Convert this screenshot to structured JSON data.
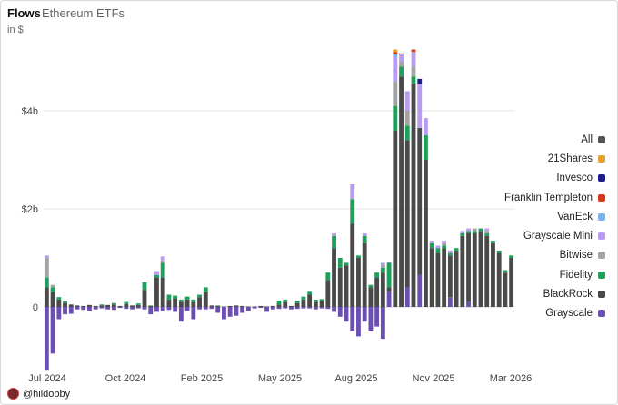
{
  "header": {
    "title": "Flows",
    "subtitle": "Ethereum ETFs",
    "units": "in $"
  },
  "credit": {
    "handle": "@hildobby"
  },
  "chart_data": {
    "type": "bar",
    "stacked": true,
    "title": "Flows",
    "subtitle": "Ethereum ETFs",
    "ylabel": "in $",
    "y_unit": "billions USD",
    "ylim": [
      -1.3,
      5.3
    ],
    "y_ticks": [
      {
        "value": 0,
        "label": "0"
      },
      {
        "value": 2,
        "label": "$2b"
      },
      {
        "value": 4,
        "label": "$4b"
      }
    ],
    "x_ticks": [
      "Jul 2024",
      "Oct 2024",
      "Feb 2025",
      "May 2025",
      "Aug 2025",
      "Nov 2025",
      "Mar 2026"
    ],
    "legend_position": "right",
    "grid": true,
    "legend": [
      {
        "name": "All",
        "color": "#555555"
      },
      {
        "name": "21Shares",
        "color": "#e3a12b"
      },
      {
        "name": "Invesco",
        "color": "#1c1c8c"
      },
      {
        "name": "Franklin Templeton",
        "color": "#d83a1e"
      },
      {
        "name": "VanEck",
        "color": "#79b1ea"
      },
      {
        "name": "Grayscale Mini",
        "color": "#b79cf1"
      },
      {
        "name": "Bitwise",
        "color": "#a3a3a3"
      },
      {
        "name": "Fidelity",
        "color": "#1fa05a"
      },
      {
        "name": "BlackRock",
        "color": "#4a4a4a"
      },
      {
        "name": "Grayscale",
        "color": "#6b4fb2"
      }
    ],
    "series_order": [
      "Grayscale",
      "BlackRock",
      "Fidelity",
      "Bitwise",
      "Grayscale Mini",
      "VanEck",
      "Franklin Templeton",
      "Invesco",
      "21Shares"
    ],
    "periods": [
      {
        "BlackRock": 0.4,
        "Fidelity": 0.2,
        "Bitwise": 0.4,
        "Grayscale Mini": 0.05,
        "Grayscale": -1.3
      },
      {
        "BlackRock": 0.3,
        "Fidelity": 0.1,
        "Bitwise": 0.05,
        "Grayscale": -0.95
      },
      {
        "BlackRock": 0.15,
        "Fidelity": 0.05,
        "Grayscale": -0.25
      },
      {
        "BlackRock": 0.08,
        "Fidelity": 0.04,
        "Grayscale": -0.15
      },
      {
        "BlackRock": 0.05,
        "Grayscale": -0.14
      },
      {
        "BlackRock": 0.03,
        "Grayscale": -0.05
      },
      {
        "BlackRock": 0.02,
        "Grayscale": -0.06
      },
      {
        "BlackRock": 0.04,
        "Grayscale": -0.08
      },
      {
        "BlackRock": 0.02,
        "Grayscale": -0.05
      },
      {
        "BlackRock": 0.03,
        "Fidelity": 0.02,
        "Grayscale": -0.03
      },
      {
        "BlackRock": 0.04,
        "Grayscale": -0.05
      },
      {
        "BlackRock": 0.05,
        "Fidelity": 0.03,
        "Grayscale": -0.06
      },
      {
        "BlackRock": 0.02,
        "Grayscale": -0.02
      },
      {
        "BlackRock": 0.06,
        "Fidelity": 0.04,
        "Grayscale": -0.04
      },
      {
        "BlackRock": 0.03,
        "Grayscale": -0.05
      },
      {
        "BlackRock": 0.04,
        "Fidelity": 0.03,
        "Grayscale": -0.03
      },
      {
        "BlackRock": 0.35,
        "Fidelity": 0.15,
        "Grayscale": -0.05
      },
      {
        "BlackRock": 0.02,
        "Fidelity": 0.01,
        "Grayscale": -0.15
      },
      {
        "BlackRock": 0.6,
        "Fidelity": 0.05,
        "Grayscale Mini": 0.08,
        "Grayscale": -0.1
      },
      {
        "BlackRock": 0.6,
        "Fidelity": 0.3,
        "Bitwise": 0.05,
        "Grayscale Mini": 0.08,
        "Grayscale": -0.08
      },
      {
        "BlackRock": 0.15,
        "Fidelity": 0.1,
        "Grayscale": -0.06
      },
      {
        "BlackRock": 0.18,
        "Fidelity": 0.05,
        "Grayscale": -0.1
      },
      {
        "BlackRock": 0.1,
        "Fidelity": 0.05,
        "Grayscale": -0.3
      },
      {
        "BlackRock": 0.15,
        "Fidelity": 0.06,
        "Grayscale": -0.08
      },
      {
        "BlackRock": 0.1,
        "Fidelity": 0.05,
        "Grayscale": -0.25
      },
      {
        "BlackRock": 0.2,
        "Fidelity": 0.05,
        "Grayscale": -0.05
      },
      {
        "BlackRock": 0.3,
        "Fidelity": 0.1,
        "Grayscale": -0.05
      },
      {
        "BlackRock": 0.03,
        "Grayscale": -0.04
      },
      {
        "BlackRock": 0.02,
        "Fidelity": 0.01,
        "Grayscale": -0.12
      },
      {
        "BlackRock": 0.01,
        "Grayscale": -0.25
      },
      {
        "BlackRock": 0.02,
        "Grayscale": -0.2
      },
      {
        "BlackRock": 0.03,
        "Grayscale": -0.18
      },
      {
        "BlackRock": 0.02,
        "Grayscale": -0.12
      },
      {
        "BlackRock": 0.01,
        "Grayscale": -0.08
      },
      {
        "BlackRock": 0.01,
        "Grayscale": -0.03
      },
      {
        "BlackRock": 0.02,
        "Grayscale": -0.02
      },
      {
        "BlackRock": 0.01,
        "Grayscale": -0.1
      },
      {
        "BlackRock": 0.02,
        "Grayscale": -0.05
      },
      {
        "BlackRock": 0.05,
        "Fidelity": 0.08,
        "Grayscale": -0.04
      },
      {
        "BlackRock": 0.1,
        "Fidelity": 0.05,
        "Grayscale": -0.03
      },
      {
        "BlackRock": 0.02,
        "Grayscale": -0.05
      },
      {
        "BlackRock": 0.08,
        "Fidelity": 0.05,
        "Grayscale": -0.04
      },
      {
        "BlackRock": 0.15,
        "Fidelity": 0.06,
        "Grayscale": -0.03
      },
      {
        "BlackRock": 0.25,
        "Fidelity": 0.06,
        "Grayscale": -0.03
      },
      {
        "BlackRock": 0.1,
        "Fidelity": 0.05,
        "Grayscale": -0.05
      },
      {
        "BlackRock": 0.12,
        "Fidelity": 0.04,
        "Grayscale": -0.03
      },
      {
        "BlackRock": 0.55,
        "Fidelity": 0.15,
        "Grayscale": -0.04
      },
      {
        "BlackRock": 1.2,
        "Fidelity": 0.25,
        "Grayscale Mini": 0.05,
        "Grayscale": -0.1
      },
      {
        "BlackRock": 0.8,
        "Fidelity": 0.2,
        "Grayscale": -0.2
      },
      {
        "BlackRock": 0.85,
        "Fidelity": 0.05,
        "Grayscale": -0.3
      },
      {
        "BlackRock": 1.7,
        "Fidelity": 0.5,
        "Grayscale Mini": 0.3,
        "Grayscale": -0.5
      },
      {
        "BlackRock": 1.0,
        "Fidelity": 0.05,
        "Grayscale": -0.6
      },
      {
        "BlackRock": 1.3,
        "Fidelity": 0.15,
        "Grayscale Mini": 0.05,
        "Grayscale": -0.3
      },
      {
        "BlackRock": 0.4,
        "Fidelity": 0.05,
        "Grayscale": -0.5
      },
      {
        "BlackRock": 0.6,
        "Fidelity": 0.1,
        "Grayscale": -0.4
      },
      {
        "BlackRock": 0.7,
        "Fidelity": 0.1,
        "Bitwise": 0.05,
        "Grayscale Mini": 0.05,
        "Grayscale": -0.65
      },
      {
        "Grayscale": 0.3,
        "BlackRock": 0.1,
        "Fidelity": 0.5,
        "Grayscale Mini": 0.02
      },
      {
        "BlackRock": 3.6,
        "Fidelity": 0.5,
        "Bitwise": 0.5,
        "Grayscale Mini": 0.5,
        "VanEck": 0.05,
        "Franklin Templeton": 0.05,
        "21Shares": 0.05
      },
      {
        "BlackRock": 4.7,
        "Fidelity": 0.2,
        "Bitwise": 0.1,
        "Grayscale Mini": 0.15,
        "Franklin Templeton": 0.02
      },
      {
        "Grayscale": 0.4,
        "BlackRock": 3.0,
        "Fidelity": 0.3,
        "Bitwise": 0.3,
        "Grayscale Mini": 0.4
      },
      {
        "BlackRock": 4.55,
        "Fidelity": 0.15,
        "Bitwise": 0.2,
        "Grayscale Mini": 0.3,
        "Franklin Templeton": 0.05
      },
      {
        "Grayscale": 0.65,
        "BlackRock": 3.0,
        "Grayscale Mini": 0.9,
        "Invesco": 0.1
      },
      {
        "BlackRock": 3.0,
        "Fidelity": 0.5,
        "Grayscale Mini": 0.35
      },
      {
        "BlackRock": 1.2,
        "Fidelity": 0.1,
        "Grayscale Mini": 0.05
      },
      {
        "BlackRock": 1.1,
        "Fidelity": 0.1,
        "Grayscale Mini": 0.05
      },
      {
        "BlackRock": 1.2,
        "Fidelity": 0.05,
        "Bitwise": 0.05,
        "Grayscale Mini": 0.05
      },
      {
        "Grayscale": 0.2,
        "BlackRock": 0.85,
        "Fidelity": 0.05,
        "Grayscale Mini": 0.05
      },
      {
        "BlackRock": 1.15,
        "Fidelity": 0.05
      },
      {
        "BlackRock": 1.45,
        "Fidelity": 0.05,
        "Grayscale Mini": 0.05
      },
      {
        "Grayscale": 0.1,
        "BlackRock": 1.4,
        "Fidelity": 0.05,
        "Grayscale Mini": 0.05
      },
      {
        "BlackRock": 1.5,
        "Fidelity": 0.05,
        "Bitwise": 0.05
      },
      {
        "BlackRock": 1.55,
        "Fidelity": 0.05
      },
      {
        "BlackRock": 1.45,
        "Fidelity": 0.05,
        "Bitwise": 0.05,
        "Grayscale Mini": 0.05
      },
      {
        "BlackRock": 1.3,
        "Fidelity": 0.05
      },
      {
        "BlackRock": 1.1,
        "Fidelity": 0.05
      },
      {
        "BlackRock": 0.7,
        "Fidelity": 0.05
      },
      {
        "BlackRock": 1.0,
        "Fidelity": 0.05
      }
    ]
  }
}
